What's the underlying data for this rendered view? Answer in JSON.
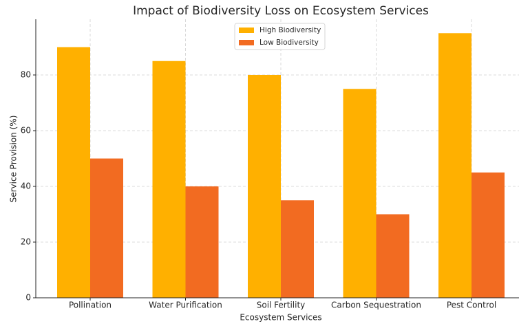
{
  "chart_data": {
    "type": "bar",
    "title": "Impact of Biodiversity Loss on Ecosystem Services",
    "xlabel": "Ecosystem Services",
    "ylabel": "Service Provision (%)",
    "categories": [
      "Pollination",
      "Water Purification",
      "Soil Fertility",
      "Carbon Sequestration",
      "Pest Control"
    ],
    "series": [
      {
        "name": "High Biodiversity",
        "color": "#ffb000",
        "values": [
          90,
          85,
          80,
          75,
          95
        ]
      },
      {
        "name": "Low Biodiversity",
        "color": "#f26b21",
        "values": [
          50,
          40,
          35,
          30,
          45
        ]
      }
    ],
    "ylim": [
      0,
      100
    ],
    "yticks": [
      0,
      20,
      40,
      60,
      80
    ],
    "grid": true,
    "legend": "upper center"
  }
}
